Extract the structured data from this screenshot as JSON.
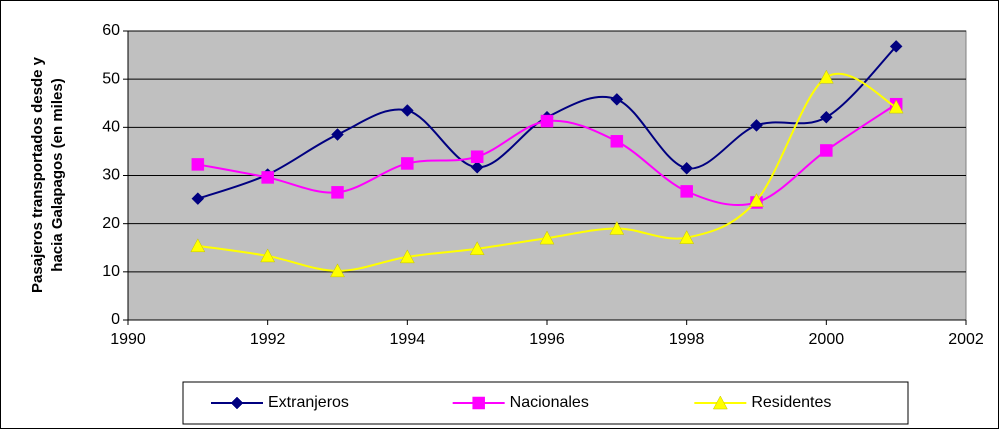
{
  "chart_data": {
    "type": "line",
    "y_label": [
      "Pasajeros transportados desde y",
      "hacia Galapagos (en miles)"
    ],
    "x": [
      1991,
      1992,
      1993,
      1994,
      1995,
      1996,
      1997,
      1998,
      1999,
      2000,
      2001
    ],
    "series": [
      {
        "name": "Extranjeros",
        "color": "#000080",
        "marker": "diamond",
        "values": [
          25.2,
          30.2,
          38.5,
          43.5,
          31.7,
          42.1,
          45.8,
          31.5,
          40.4,
          42.1,
          56.8
        ]
      },
      {
        "name": "Nacionales",
        "color": "#ff00ff",
        "marker": "square",
        "values": [
          32.3,
          29.6,
          26.5,
          32.5,
          33.9,
          41.3,
          37.1,
          26.7,
          24.4,
          35.2,
          44.8
        ]
      },
      {
        "name": "Residentes",
        "color": "#ffff00",
        "marker": "triangle",
        "values": [
          15.4,
          13.3,
          10.2,
          13.1,
          14.8,
          17.0,
          19.0,
          17.1,
          24.8,
          50.4,
          44.2
        ]
      }
    ],
    "xlim": [
      1990,
      2002
    ],
    "xticks": [
      1990,
      1992,
      1994,
      1996,
      1998,
      2000,
      2002
    ],
    "ylim": [
      0,
      60
    ],
    "yticks": [
      0,
      10,
      20,
      30,
      40,
      50,
      60
    ],
    "grid": true,
    "smooth": true,
    "legend": "bottom"
  }
}
